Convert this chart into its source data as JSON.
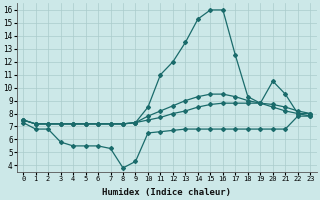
{
  "xlabel": "Humidex (Indice chaleur)",
  "bg_color": "#cce8e8",
  "grid_color": "#aacccc",
  "line_color": "#1a6b6b",
  "xlim": [
    -0.5,
    23.5
  ],
  "ylim": [
    3.5,
    16.5
  ],
  "xticks": [
    0,
    1,
    2,
    3,
    4,
    5,
    6,
    7,
    8,
    9,
    10,
    11,
    12,
    13,
    14,
    15,
    16,
    17,
    18,
    19,
    20,
    21,
    22,
    23
  ],
  "yticks": [
    4,
    5,
    6,
    7,
    8,
    9,
    10,
    11,
    12,
    13,
    14,
    15,
    16
  ],
  "line1_x": [
    0,
    1,
    2,
    3,
    4,
    5,
    6,
    7,
    8,
    9,
    10,
    11,
    12,
    13,
    14,
    15,
    16,
    17,
    18,
    19,
    20,
    21,
    22,
    23
  ],
  "line1_y": [
    7.5,
    7.2,
    7.2,
    7.2,
    7.2,
    7.2,
    7.2,
    7.2,
    7.2,
    7.3,
    7.5,
    7.7,
    8.0,
    8.2,
    8.5,
    8.7,
    8.8,
    8.8,
    8.8,
    8.8,
    8.7,
    8.5,
    8.2,
    8.0
  ],
  "line2_x": [
    0,
    1,
    2,
    3,
    4,
    5,
    6,
    7,
    8,
    9,
    10,
    11,
    12,
    13,
    14,
    15,
    16,
    17,
    18,
    19,
    20,
    21,
    22,
    23
  ],
  "line2_y": [
    7.5,
    7.2,
    7.2,
    7.2,
    7.2,
    7.2,
    7.2,
    7.2,
    7.2,
    7.3,
    7.8,
    8.2,
    8.6,
    9.0,
    9.3,
    9.5,
    9.5,
    9.3,
    9.0,
    8.8,
    8.5,
    8.2,
    8.0,
    7.8
  ],
  "line3_x": [
    0,
    1,
    2,
    3,
    4,
    5,
    6,
    7,
    8,
    9,
    10,
    11,
    12,
    13,
    14,
    15,
    16,
    17,
    18,
    19,
    20,
    21,
    22,
    23
  ],
  "line3_y": [
    7.3,
    6.8,
    6.8,
    5.8,
    5.5,
    5.5,
    5.5,
    5.3,
    3.8,
    4.3,
    6.5,
    6.6,
    6.7,
    6.8,
    6.8,
    6.8,
    6.8,
    6.8,
    6.8,
    6.8,
    6.8,
    6.8,
    7.8,
    7.8
  ],
  "line4_x": [
    0,
    1,
    2,
    3,
    4,
    5,
    6,
    7,
    8,
    9,
    10,
    11,
    12,
    13,
    14,
    15,
    16,
    17,
    18,
    19,
    20,
    21,
    22,
    23
  ],
  "line4_y": [
    7.5,
    7.2,
    7.2,
    7.2,
    7.2,
    7.2,
    7.2,
    7.2,
    7.2,
    7.3,
    8.5,
    11.0,
    12.0,
    13.5,
    15.3,
    16.0,
    16.0,
    12.5,
    9.3,
    8.8,
    10.5,
    9.5,
    8.0,
    8.0
  ]
}
